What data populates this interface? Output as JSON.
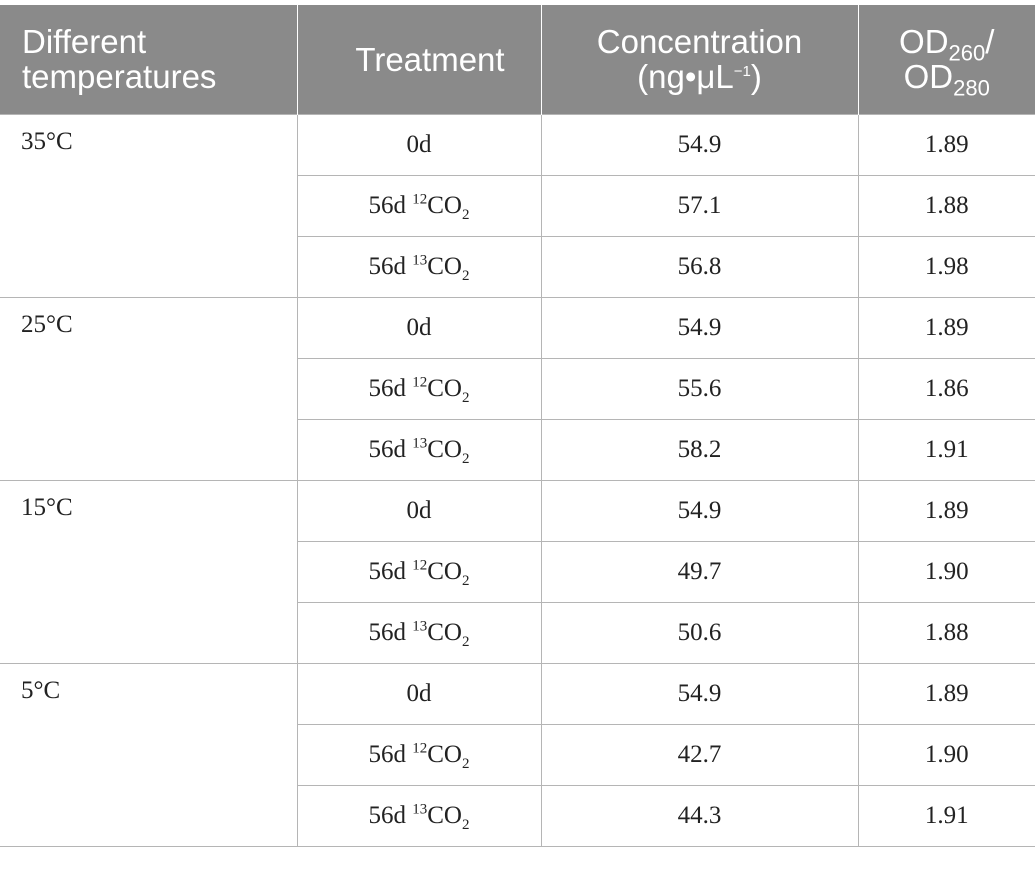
{
  "header": {
    "col1": "Different temperatures",
    "col2": "Treatment",
    "col3_line1": "Concentration",
    "col3_line2_pre": "(ng•μL",
    "col3_line2_sup": "−1",
    "col3_line2_post": ")",
    "col4_a": "OD",
    "col4_a_sub": "260",
    "col4_sep": "/",
    "col4_b": "OD",
    "col4_b_sub": "280"
  },
  "groups": [
    {
      "temperature": "35°C",
      "rows": [
        {
          "treatment": "0d",
          "isotope": "",
          "iso_co": "",
          "iso_sub": "",
          "concentration": "54.9",
          "od": "1.89"
        },
        {
          "treatment": "56d ",
          "isotope": "12",
          "iso_co": "CO",
          "iso_sub": "2",
          "concentration": "57.1",
          "od": "1.88"
        },
        {
          "treatment": "56d ",
          "isotope": "13",
          "iso_co": "CO",
          "iso_sub": "2",
          "concentration": "56.8",
          "od": "1.98"
        }
      ]
    },
    {
      "temperature": "25°C",
      "rows": [
        {
          "treatment": "0d",
          "isotope": "",
          "iso_co": "",
          "iso_sub": "",
          "concentration": "54.9",
          "od": "1.89"
        },
        {
          "treatment": "56d ",
          "isotope": "12",
          "iso_co": "CO",
          "iso_sub": "2",
          "concentration": "55.6",
          "od": "1.86"
        },
        {
          "treatment": "56d ",
          "isotope": "13",
          "iso_co": "CO",
          "iso_sub": "2",
          "concentration": "58.2",
          "od": "1.91"
        }
      ]
    },
    {
      "temperature": "15°C",
      "rows": [
        {
          "treatment": "0d",
          "isotope": "",
          "iso_co": "",
          "iso_sub": "",
          "concentration": "54.9",
          "od": "1.89"
        },
        {
          "treatment": "56d ",
          "isotope": "12",
          "iso_co": "CO",
          "iso_sub": "2",
          "concentration": "49.7",
          "od": "1.90"
        },
        {
          "treatment": "56d ",
          "isotope": "13",
          "iso_co": "CO",
          "iso_sub": "2",
          "concentration": "50.6",
          "od": "1.88"
        }
      ]
    },
    {
      "temperature": "5°C",
      "rows": [
        {
          "treatment": "0d",
          "isotope": "",
          "iso_co": "",
          "iso_sub": "",
          "concentration": "54.9",
          "od": "1.89"
        },
        {
          "treatment": "56d ",
          "isotope": "12",
          "iso_co": "CO",
          "iso_sub": "2",
          "concentration": "42.7",
          "od": "1.90"
        },
        {
          "treatment": "56d ",
          "isotope": "13",
          "iso_co": "CO",
          "iso_sub": "2",
          "concentration": "44.3",
          "od": "1.91"
        }
      ]
    }
  ]
}
